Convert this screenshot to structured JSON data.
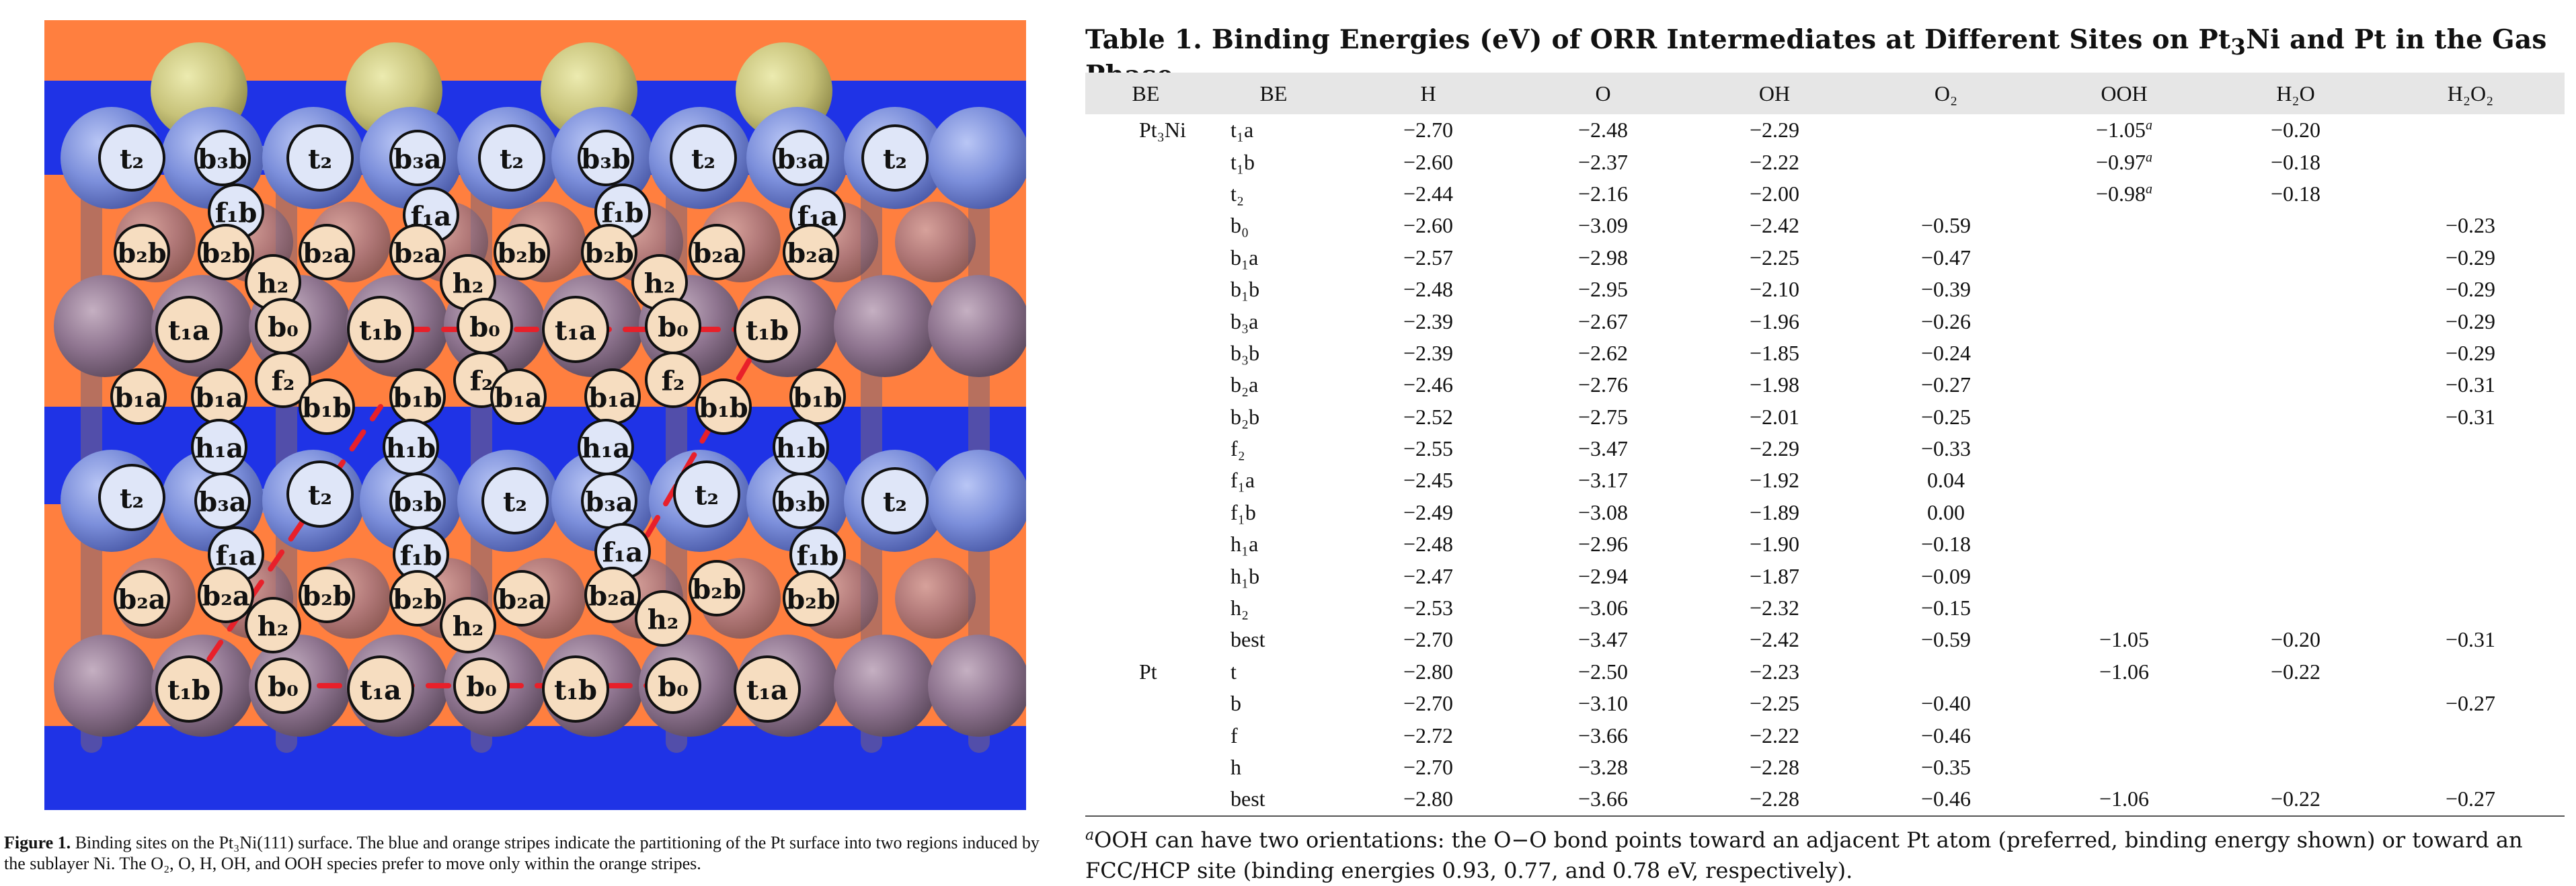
{
  "figure": {
    "caption_label": "Figure 1.",
    "caption_text": "Binding sites on the Pt₃Ni(111) surface. The blue and orange stripes indicate the partitioning of the Pt surface into two regions induced by the sublayer Ni. The O₂, O, H, OH, and OOH species prefer to move only within the orange stripes.",
    "colors": {
      "orange_stripe": "#ff7f3f",
      "blue_stripe": "#1f33e6",
      "pt_atom": "#8a6f86",
      "ni_atom": "#7a8ee0",
      "sub_atom": "#d6d07a",
      "path": "#e8202a"
    },
    "sites": [
      {
        "label": "t₂",
        "kind": "blue"
      },
      {
        "label": "b₃b",
        "kind": "blue"
      },
      {
        "label": "t₂",
        "kind": "blue"
      },
      {
        "label": "b₃a",
        "kind": "blue"
      },
      {
        "label": "t₂",
        "kind": "blue"
      },
      {
        "label": "b₃b",
        "kind": "blue"
      },
      {
        "label": "t₂",
        "kind": "blue"
      },
      {
        "label": "b₃a",
        "kind": "blue"
      },
      {
        "label": "t₂",
        "kind": "blue"
      },
      {
        "label": "f₁b",
        "kind": "blue"
      },
      {
        "label": "f₁a",
        "kind": "blue"
      },
      {
        "label": "f₁b",
        "kind": "blue"
      },
      {
        "label": "f₁a",
        "kind": "blue"
      },
      {
        "label": "b₂b",
        "kind": "tan"
      },
      {
        "label": "b₂b",
        "kind": "tan"
      },
      {
        "label": "b₂a",
        "kind": "tan"
      },
      {
        "label": "b₂a",
        "kind": "tan"
      },
      {
        "label": "b₂b",
        "kind": "tan"
      },
      {
        "label": "b₂b",
        "kind": "tan"
      },
      {
        "label": "b₂a",
        "kind": "tan"
      },
      {
        "label": "b₂a",
        "kind": "tan"
      },
      {
        "label": "h₂",
        "kind": "tan"
      },
      {
        "label": "h₂",
        "kind": "tan"
      },
      {
        "label": "h₂",
        "kind": "tan"
      },
      {
        "label": "t₁a",
        "kind": "tan"
      },
      {
        "label": "b₀",
        "kind": "tan"
      },
      {
        "label": "t₁b",
        "kind": "tan"
      },
      {
        "label": "b₀",
        "kind": "tan"
      },
      {
        "label": "t₁a",
        "kind": "tan"
      },
      {
        "label": "b₀",
        "kind": "tan"
      },
      {
        "label": "t₁b",
        "kind": "tan"
      },
      {
        "label": "f₂",
        "kind": "tan"
      },
      {
        "label": "f₂",
        "kind": "tan"
      },
      {
        "label": "f₂",
        "kind": "tan"
      },
      {
        "label": "b₁a",
        "kind": "tan"
      },
      {
        "label": "b₁a",
        "kind": "tan"
      },
      {
        "label": "b₁b",
        "kind": "tan"
      },
      {
        "label": "b₁b",
        "kind": "tan"
      },
      {
        "label": "b₁a",
        "kind": "tan"
      },
      {
        "label": "b₁a",
        "kind": "tan"
      },
      {
        "label": "b₁b",
        "kind": "tan"
      },
      {
        "label": "b₁b",
        "kind": "tan"
      },
      {
        "label": "h₁a",
        "kind": "blue"
      },
      {
        "label": "h₁b",
        "kind": "blue"
      },
      {
        "label": "h₁a",
        "kind": "blue"
      },
      {
        "label": "h₁b",
        "kind": "blue"
      },
      {
        "label": "t₂",
        "kind": "blue"
      },
      {
        "label": "b₃a",
        "kind": "blue"
      },
      {
        "label": "t₂",
        "kind": "blue"
      },
      {
        "label": "b₃b",
        "kind": "blue"
      },
      {
        "label": "t₂",
        "kind": "blue"
      },
      {
        "label": "b₃a",
        "kind": "blue"
      },
      {
        "label": "t₂",
        "kind": "blue"
      },
      {
        "label": "b₃b",
        "kind": "blue"
      },
      {
        "label": "t₂",
        "kind": "blue"
      },
      {
        "label": "f₁a",
        "kind": "blue"
      },
      {
        "label": "f₁b",
        "kind": "blue"
      },
      {
        "label": "f₁a",
        "kind": "blue"
      },
      {
        "label": "f₁b",
        "kind": "blue"
      },
      {
        "label": "b₂a",
        "kind": "tan"
      },
      {
        "label": "b₂a",
        "kind": "tan"
      },
      {
        "label": "b₂b",
        "kind": "tan"
      },
      {
        "label": "b₂b",
        "kind": "tan"
      },
      {
        "label": "b₂a",
        "kind": "tan"
      },
      {
        "label": "b₂a",
        "kind": "tan"
      },
      {
        "label": "b₂b",
        "kind": "tan"
      },
      {
        "label": "b₂b",
        "kind": "tan"
      },
      {
        "label": "h₂",
        "kind": "tan"
      },
      {
        "label": "h₂",
        "kind": "tan"
      },
      {
        "label": "h₂",
        "kind": "tan"
      },
      {
        "label": "t₁b",
        "kind": "tan"
      },
      {
        "label": "b₀",
        "kind": "tan"
      },
      {
        "label": "t₁a",
        "kind": "tan"
      },
      {
        "label": "b₀",
        "kind": "tan"
      },
      {
        "label": "t₁b",
        "kind": "tan"
      },
      {
        "label": "b₀",
        "kind": "tan"
      },
      {
        "label": "t₁a",
        "kind": "tan"
      }
    ]
  },
  "table": {
    "title_pre": "Table 1. Binding Energies (eV) of ORR Intermediates at Different Sites on Pt",
    "title_sub": "3",
    "title_post": "Ni and Pt in the Gas Phase",
    "columns": [
      "BE",
      "BE",
      "H",
      "O",
      "OH",
      "O₂",
      "OOH",
      "H₂O",
      "H₂O₂"
    ],
    "rows": [
      {
        "group": "Pt₃Ni",
        "site": "t₁a",
        "H": "−2.70",
        "O": "−2.48",
        "OH": "−2.29",
        "O2": "",
        "OOH": "−1.05",
        "OOH_note": "a",
        "H2O": "−0.20",
        "H2O2": ""
      },
      {
        "group": "",
        "site": "t₁b",
        "H": "−2.60",
        "O": "−2.37",
        "OH": "−2.22",
        "O2": "",
        "OOH": "−0.97",
        "OOH_note": "a",
        "H2O": "−0.18",
        "H2O2": ""
      },
      {
        "group": "",
        "site": "t₂",
        "H": "−2.44",
        "O": "−2.16",
        "OH": "−2.00",
        "O2": "",
        "OOH": "−0.98",
        "OOH_note": "a",
        "H2O": "−0.18",
        "H2O2": ""
      },
      {
        "group": "",
        "site": "b₀",
        "H": "−2.60",
        "O": "−3.09",
        "OH": "−2.42",
        "O2": "−0.59",
        "OOH": "",
        "OOH_note": "",
        "H2O": "",
        "H2O2": "−0.23"
      },
      {
        "group": "",
        "site": "b₁a",
        "H": "−2.57",
        "O": "−2.98",
        "OH": "−2.25",
        "O2": "−0.47",
        "OOH": "",
        "OOH_note": "",
        "H2O": "",
        "H2O2": "−0.29"
      },
      {
        "group": "",
        "site": "b₁b",
        "H": "−2.48",
        "O": "−2.95",
        "OH": "−2.10",
        "O2": "−0.39",
        "OOH": "",
        "OOH_note": "",
        "H2O": "",
        "H2O2": "−0.29"
      },
      {
        "group": "",
        "site": "b₃a",
        "H": "−2.39",
        "O": "−2.67",
        "OH": "−1.96",
        "O2": "−0.26",
        "OOH": "",
        "OOH_note": "",
        "H2O": "",
        "H2O2": "−0.29"
      },
      {
        "group": "",
        "site": "b₃b",
        "H": "−2.39",
        "O": "−2.62",
        "OH": "−1.85",
        "O2": "−0.24",
        "OOH": "",
        "OOH_note": "",
        "H2O": "",
        "H2O2": "−0.29"
      },
      {
        "group": "",
        "site": "b₂a",
        "H": "−2.46",
        "O": "−2.76",
        "OH": "−1.98",
        "O2": "−0.27",
        "OOH": "",
        "OOH_note": "",
        "H2O": "",
        "H2O2": "−0.31"
      },
      {
        "group": "",
        "site": "b₂b",
        "H": "−2.52",
        "O": "−2.75",
        "OH": "−2.01",
        "O2": "−0.25",
        "OOH": "",
        "OOH_note": "",
        "H2O": "",
        "H2O2": "−0.31"
      },
      {
        "group": "",
        "site": "f₂",
        "H": "−2.55",
        "O": "−3.47",
        "OH": "−2.29",
        "O2": "−0.33",
        "OOH": "",
        "OOH_note": "",
        "H2O": "",
        "H2O2": ""
      },
      {
        "group": "",
        "site": "f₁a",
        "H": "−2.45",
        "O": "−3.17",
        "OH": "−1.92",
        "O2": "0.04",
        "OOH": "",
        "OOH_note": "",
        "H2O": "",
        "H2O2": ""
      },
      {
        "group": "",
        "site": "f₁b",
        "H": "−2.49",
        "O": "−3.08",
        "OH": "−1.89",
        "O2": "0.00",
        "OOH": "",
        "OOH_note": "",
        "H2O": "",
        "H2O2": ""
      },
      {
        "group": "",
        "site": "h₁a",
        "H": "−2.48",
        "O": "−2.96",
        "OH": "−1.90",
        "O2": "−0.18",
        "OOH": "",
        "OOH_note": "",
        "H2O": "",
        "H2O2": ""
      },
      {
        "group": "",
        "site": "h₁b",
        "H": "−2.47",
        "O": "−2.94",
        "OH": "−1.87",
        "O2": "−0.09",
        "OOH": "",
        "OOH_note": "",
        "H2O": "",
        "H2O2": ""
      },
      {
        "group": "",
        "site": "h₂",
        "H": "−2.53",
        "O": "−3.06",
        "OH": "−2.32",
        "O2": "−0.15",
        "OOH": "",
        "OOH_note": "",
        "H2O": "",
        "H2O2": ""
      },
      {
        "group": "",
        "site": "best",
        "H": "−2.70",
        "O": "−3.47",
        "OH": "−2.42",
        "O2": "−0.59",
        "OOH": "−1.05",
        "OOH_note": "",
        "H2O": "−0.20",
        "H2O2": "−0.31"
      },
      {
        "group": "Pt",
        "site": "t",
        "H": "−2.80",
        "O": "−2.50",
        "OH": "−2.23",
        "O2": "",
        "OOH": "−1.06",
        "OOH_note": "",
        "H2O": "−0.22",
        "H2O2": ""
      },
      {
        "group": "",
        "site": "b",
        "H": "−2.70",
        "O": "−3.10",
        "OH": "−2.25",
        "O2": "−0.40",
        "OOH": "",
        "OOH_note": "",
        "H2O": "",
        "H2O2": "−0.27"
      },
      {
        "group": "",
        "site": "f",
        "H": "−2.72",
        "O": "−3.66",
        "OH": "−2.22",
        "O2": "−0.46",
        "OOH": "",
        "OOH_note": "",
        "H2O": "",
        "H2O2": ""
      },
      {
        "group": "",
        "site": "h",
        "H": "−2.70",
        "O": "−3.28",
        "OH": "−2.28",
        "O2": "−0.35",
        "OOH": "",
        "OOH_note": "",
        "H2O": "",
        "H2O2": ""
      },
      {
        "group": "",
        "site": "best",
        "H": "−2.80",
        "O": "−3.66",
        "OH": "−2.28",
        "O2": "−0.46",
        "OOH": "−1.06",
        "OOH_note": "",
        "H2O": "−0.22",
        "H2O2": "−0.27"
      }
    ],
    "footnote_mark": "a",
    "footnote_text": "OOH can have two orientations: the O−O bond points toward an adjacent Pt atom (preferred, binding energy shown) or toward an FCC/HCP site (binding energies 0.93, 0.77, and 0.78 eV, respectively)."
  }
}
